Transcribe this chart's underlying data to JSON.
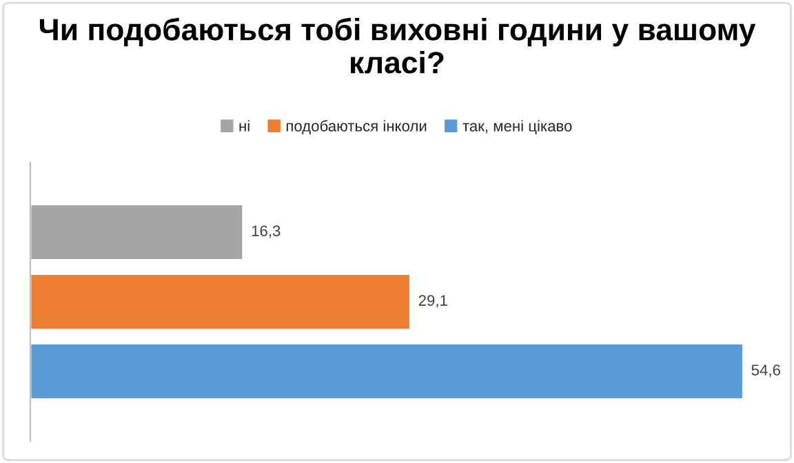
{
  "chart_data": {
    "type": "bar",
    "orientation": "horizontal",
    "title": "Чи подобаються тобі виховні години у вашому класі?",
    "categories": [
      null
    ],
    "series": [
      {
        "name": "ні",
        "color": "#a5a5a5",
        "values": [
          16.3
        ],
        "value_labels": [
          "16,3"
        ]
      },
      {
        "name": "подобаються інколи",
        "color": "#ed7d31",
        "values": [
          29.1
        ],
        "value_labels": [
          "29,1"
        ]
      },
      {
        "name": "так, мені цікаво",
        "color": "#5b9bd5",
        "values": [
          54.6
        ],
        "value_labels": [
          "54,6"
        ]
      }
    ],
    "legend": "top"
  }
}
